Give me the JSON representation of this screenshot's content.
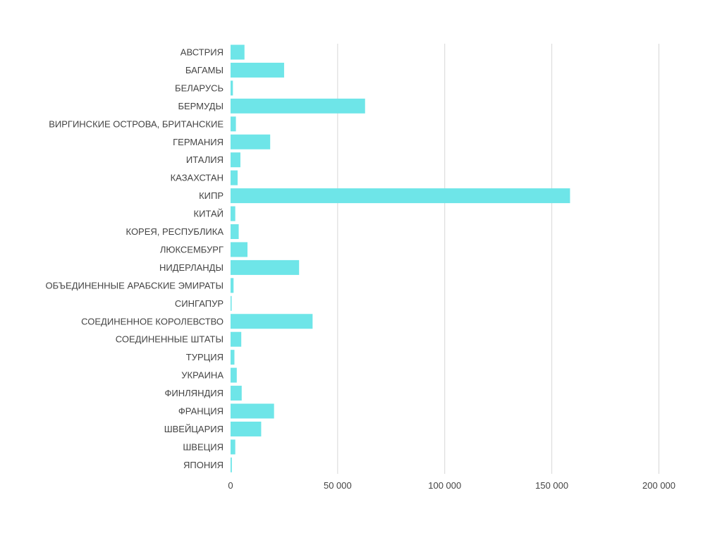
{
  "colors": {
    "bar": "#6ee5e8",
    "grid": "#d6d6d6",
    "text": "#444444"
  },
  "chart_data": {
    "type": "bar",
    "orientation": "horizontal",
    "title": "",
    "xlabel": "",
    "ylabel": "",
    "xlim": [
      0,
      200000
    ],
    "x_ticks": [
      0,
      50000,
      100000,
      150000,
      200000
    ],
    "x_tick_labels": [
      "0",
      "50 000",
      "100 000",
      "150 000",
      "200 000"
    ],
    "grid": true,
    "categories": [
      "АВСТРИЯ",
      "БАГАМЫ",
      "БЕЛАРУСЬ",
      "БЕРМУДЫ",
      "ВИРГИНСКИЕ ОСТРОВА, БРИТАНСКИЕ",
      "ГЕРМАНИЯ",
      "ИТАЛИЯ",
      "КАЗАХСТАН",
      "КИПР",
      "КИТАЙ",
      "КОРЕЯ, РЕСПУБЛИКА",
      "ЛЮКСЕМБУРГ",
      "НИДЕРЛАНДЫ",
      "ОБЪЕДИНЕННЫЕ АРАБСКИЕ ЭМИРАТЫ",
      "СИНГАПУР",
      "СОЕДИНЕННОЕ КОРОЛЕВСТВО",
      "СОЕДИНЕННЫЕ ШТАТЫ",
      "ТУРЦИЯ",
      "УКРАИНА",
      "ФИНЛЯНДИЯ",
      "ФРАНЦИЯ",
      "ШВЕЙЦАРИЯ",
      "ШВЕЦИЯ",
      "ЯПОНИЯ"
    ],
    "values": [
      6500,
      25000,
      1100,
      62800,
      2500,
      18500,
      4600,
      3300,
      158500,
      2200,
      3800,
      7900,
      32000,
      1400,
      500,
      38300,
      5000,
      1800,
      2900,
      5200,
      20300,
      14300,
      2200,
      600
    ]
  }
}
